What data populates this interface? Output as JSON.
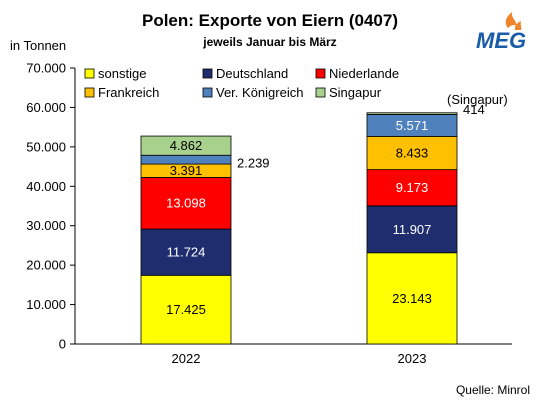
{
  "title": "Polen: Exporte von Eiern (0407)",
  "subtitle": "jeweils Januar bis März",
  "unit_label": "in Tonnen",
  "source": "Quelle: Minrol",
  "logo_text": "MEG",
  "colors": {
    "sonstige": "#ffff00",
    "Deutschland": "#1f2d6e",
    "Niederlande": "#ff0000",
    "Frankreich": "#ffc000",
    "Ver. Königreich": "#4f81bd",
    "Singapur": "#a9d18e",
    "logo_blue": "#1a5ca8",
    "logo_orange": "#f0842b"
  },
  "chart_data": {
    "type": "bar",
    "stacked": true,
    "categories": [
      "2022",
      "2023"
    ],
    "series": [
      {
        "name": "sonstige",
        "values": [
          17425,
          23143
        ],
        "labels": [
          "17.425",
          "23.143"
        ]
      },
      {
        "name": "Deutschland",
        "values": [
          11724,
          11907
        ],
        "labels": [
          "11.724",
          "11.907"
        ]
      },
      {
        "name": "Niederlande",
        "values": [
          13098,
          9173
        ],
        "labels": [
          "13.098",
          "9.173"
        ]
      },
      {
        "name": "Frankreich",
        "values": [
          3391,
          8433
        ],
        "labels": [
          "3.391",
          "8.433"
        ]
      },
      {
        "name": "Ver. Königreich",
        "values": [
          2239,
          5571
        ],
        "labels": [
          "2.239",
          "5.571"
        ]
      },
      {
        "name": "Singapur",
        "values": [
          4862,
          414
        ],
        "labels": [
          "4.862",
          "414"
        ]
      }
    ],
    "annotations": [
      "(Singapur)"
    ],
    "ylim": [
      0,
      70000
    ],
    "yticks": [
      0,
      10000,
      20000,
      30000,
      40000,
      50000,
      60000,
      70000
    ],
    "ytick_labels": [
      "0",
      "10.000",
      "20.000",
      "30.000",
      "40.000",
      "50.000",
      "60.000",
      "70.000"
    ],
    "grid": false,
    "legend": "top-left, 3 columns"
  }
}
